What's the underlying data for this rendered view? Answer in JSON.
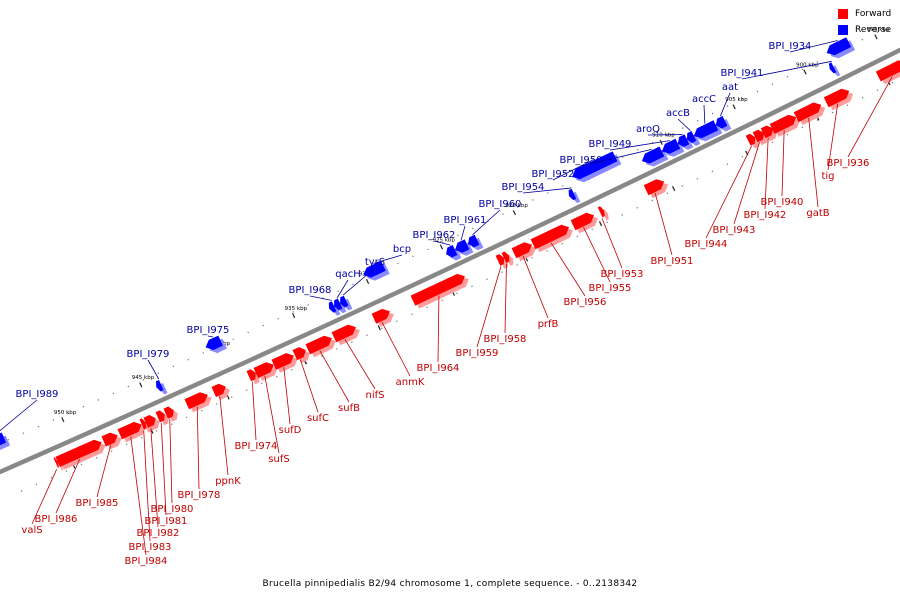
{
  "title": "Brucella pinnipedialis B2/94 chromosome 1, complete sequence. - 0..2138342",
  "legend": {
    "forward_label": "Forward",
    "reverse_label": "Reverse",
    "forward_color": "#ff0000",
    "reverse_color": "#0000ff"
  },
  "colors": {
    "forward": "#ff0000",
    "forward_shade": "#ff9a9a",
    "reverse": "#0000ff",
    "reverse_shade": "#8a8aff",
    "backbone": "#888888",
    "forward_text": "#c00000",
    "reverse_text": "#0000a0"
  },
  "scale_labels": [
    "895 kbp",
    "900 kbp",
    "905 kbp",
    "910 kbp",
    "915 kbp",
    "920 kbp",
    "925 kbp",
    "930 kbp",
    "935 kbp",
    "940 kbp",
    "945 kbp",
    "950 kbp"
  ],
  "forward_genes": [
    "BPI_I936",
    "tig",
    "gatB",
    "BPI_I940",
    "BPI_I942",
    "BPI_I943",
    "BPI_I944",
    "BPI_I951",
    "BPI_I953",
    "BPI_I955",
    "BPI_I956",
    "prfB",
    "BPI_I958",
    "BPI_I959",
    "BPI_I964",
    "anmK",
    "nifS",
    "sufB",
    "sufC",
    "sufD",
    "sufS",
    "BPI_I974",
    "ppnK",
    "BPI_I978",
    "BPI_I980",
    "BPI_I981",
    "BPI_I982",
    "BPI_I983",
    "BPI_I984",
    "BPI_I985",
    "BPI_I986",
    "valS"
  ],
  "reverse_genes": [
    "BPI_I934",
    "BPI_I941",
    "aat",
    "accC",
    "accB",
    "aroQ",
    "BPI_I949",
    "BPI_I950",
    "BPI_I952",
    "BPI_I954",
    "BPI_I960",
    "BPI_I961",
    "BPI_I962",
    "bcp",
    "tyrS",
    "qacH",
    "BPI_I968",
    "BPI_I975",
    "BPI_I979",
    "BPI_I989"
  ]
}
